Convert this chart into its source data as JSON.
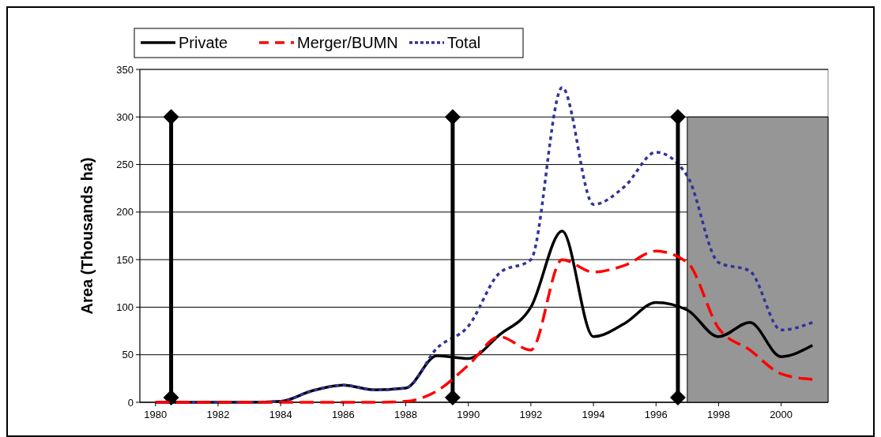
{
  "chart_data": {
    "type": "line",
    "ylabel": "Area (Thousands ha)",
    "x": [
      1980,
      1981,
      1982,
      1983,
      1984,
      1985,
      1986,
      1987,
      1988,
      1989,
      1990,
      1991,
      1992,
      1993,
      1994,
      1995,
      1996,
      1997,
      1998,
      1999,
      2000,
      2001
    ],
    "xlim": [
      1979.5,
      2001.5
    ],
    "xticks": [
      1980,
      1982,
      1984,
      1986,
      1988,
      1990,
      1992,
      1994,
      1996,
      1998,
      2000
    ],
    "ylim": [
      0,
      350
    ],
    "yticks": [
      0,
      50,
      100,
      150,
      200,
      250,
      300,
      350
    ],
    "grid": "y",
    "legend": "top left",
    "series": [
      {
        "type": "area",
        "color": "#969696",
        "x": [
          1997.0,
          2001.5
        ],
        "values": [
          300,
          300
        ]
      },
      {
        "name": "Private",
        "color": "#000000",
        "line_style": "solid",
        "values": [
          0,
          0,
          0,
          0,
          1,
          12,
          18,
          13,
          15,
          49,
          46,
          71,
          100,
          180,
          69,
          83,
          105,
          97,
          69,
          84,
          48,
          60
        ]
      },
      {
        "name": "Merger/BUMN",
        "color": "#ff0000",
        "line_style": "dashed",
        "values": [
          0,
          0,
          0,
          0,
          0,
          0,
          0,
          0,
          1,
          12,
          39,
          69,
          55,
          150,
          137,
          144,
          159,
          147,
          78,
          55,
          30,
          24
        ]
      },
      {
        "name": "Total",
        "color": "#333399",
        "line_style": "dotted",
        "values": [
          0,
          0,
          0,
          0,
          1,
          12,
          18,
          13,
          15,
          57,
          80,
          136,
          150,
          331,
          208,
          227,
          263,
          238,
          147,
          138,
          76,
          84
        ]
      },
      {
        "color": "#000000",
        "line_style": "solid",
        "marker": "diamond",
        "x": [
          1980.5,
          1980.5
        ],
        "values": [
          5,
          300
        ]
      },
      {
        "color": "#000000",
        "line_style": "solid",
        "marker": "diamond",
        "x": [
          1989.5,
          1989.5
        ],
        "values": [
          5,
          300
        ]
      },
      {
        "color": "#000000",
        "line_style": "solid",
        "marker": "diamond",
        "x": [
          1996.7,
          1996.7
        ],
        "values": [
          5,
          300
        ]
      }
    ]
  }
}
